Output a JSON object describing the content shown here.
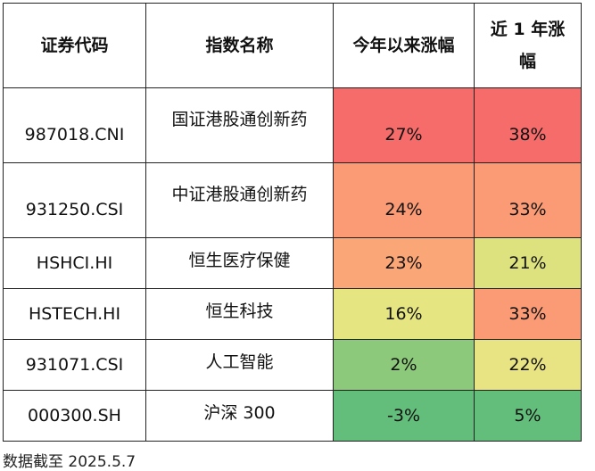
{
  "table": {
    "headers": {
      "code": "证券代码",
      "name": "指数名称",
      "ytd": "今年以来涨幅",
      "one_year_line1": "近 1 年涨",
      "one_year_line2": "幅"
    },
    "rows": [
      {
        "code": "987018.CNI",
        "name": "国证港股通创新药",
        "ytd": "27%",
        "one_year": "38%",
        "ytd_color": "#f56c6b",
        "one_year_color": "#f56c6b"
      },
      {
        "code": "931250.CSI",
        "name": "中证港股通创新药",
        "ytd": "24%",
        "one_year": "33%",
        "ytd_color": "#fa9b75",
        "one_year_color": "#fa9b75"
      },
      {
        "code": "HSHCI.HI",
        "name": "恒生医疗保健",
        "ytd": "23%",
        "one_year": "21%",
        "ytd_color": "#fba676",
        "one_year_color": "#dde27f"
      },
      {
        "code": "HSTECH.HI",
        "name": "恒生科技",
        "ytd": "16%",
        "one_year": "33%",
        "ytd_color": "#e5e582",
        "one_year_color": "#fa9b75"
      },
      {
        "code": "931071.CSI",
        "name": "人工智能",
        "ytd": "2%",
        "one_year": "22%",
        "ytd_color": "#8cc97a",
        "one_year_color": "#e9e483"
      },
      {
        "code": "000300.SH",
        "name": "沪深 300",
        "ytd": "-3%",
        "one_year": "5%",
        "ytd_color": "#63be7b",
        "one_year_color": "#63be7b"
      }
    ]
  },
  "note": "数据截至 2025.5.7"
}
